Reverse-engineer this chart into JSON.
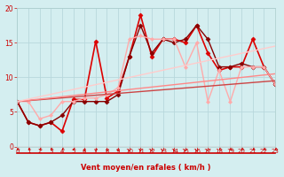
{
  "xlabel": "Vent moyen/en rafales ( km/h )",
  "xlim": [
    0,
    23
  ],
  "ylim": [
    0,
    20
  ],
  "xticks": [
    0,
    1,
    2,
    3,
    4,
    5,
    6,
    7,
    8,
    9,
    10,
    11,
    12,
    13,
    14,
    15,
    16,
    17,
    18,
    19,
    20,
    21,
    22,
    23
  ],
  "yticks": [
    0,
    5,
    10,
    15,
    20
  ],
  "bg_color": "#d4eef0",
  "grid_color": "#b8d8dc",
  "lines": [
    {
      "x": [
        0,
        1,
        2,
        3,
        4,
        5,
        6,
        7,
        8,
        9,
        10,
        11,
        12,
        13,
        14,
        15,
        16,
        17,
        18,
        19,
        20,
        21,
        22,
        23
      ],
      "y": [
        6.5,
        3.5,
        3.0,
        3.5,
        2.2,
        6.8,
        6.8,
        15.2,
        7.0,
        8.0,
        13.0,
        19.0,
        13.0,
        15.5,
        15.5,
        15.0,
        17.5,
        13.5,
        11.0,
        11.5,
        11.5,
        15.5,
        11.5,
        9.0
      ],
      "color": "#dd0000",
      "lw": 1.2,
      "marker": "D",
      "ms": 2.5
    },
    {
      "x": [
        0,
        1,
        2,
        3,
        4,
        5,
        6,
        7,
        8,
        9,
        10,
        11,
        12,
        13,
        14,
        15,
        16,
        17,
        18,
        19,
        20,
        21,
        22,
        23
      ],
      "y": [
        6.5,
        3.5,
        3.0,
        3.5,
        4.5,
        6.5,
        6.5,
        6.5,
        6.5,
        7.5,
        13.0,
        17.5,
        13.5,
        15.5,
        15.0,
        15.5,
        17.5,
        15.5,
        11.5,
        11.5,
        12.0,
        11.5,
        11.5,
        9.0
      ],
      "color": "#880000",
      "lw": 1.0,
      "marker": "D",
      "ms": 2.5
    },
    {
      "x": [
        0,
        1,
        2,
        3,
        4,
        5,
        6,
        7,
        8,
        9,
        10,
        11,
        12,
        13,
        14,
        15,
        16,
        17,
        18,
        19,
        20,
        21,
        22,
        23
      ],
      "y": [
        6.5,
        6.5,
        4.0,
        4.5,
        6.5,
        6.5,
        7.0,
        7.0,
        7.5,
        8.5,
        15.5,
        16.0,
        15.5,
        15.5,
        15.5,
        11.5,
        15.0,
        6.5,
        11.0,
        6.5,
        11.5,
        11.5,
        11.5,
        9.0
      ],
      "color": "#ffaaaa",
      "lw": 1.0,
      "marker": "D",
      "ms": 2.0
    },
    {
      "x": [
        0,
        23
      ],
      "y": [
        6.5,
        9.5
      ],
      "color": "#cc4444",
      "lw": 1.0,
      "marker": null,
      "ms": 0
    },
    {
      "x": [
        0,
        23
      ],
      "y": [
        6.5,
        10.5
      ],
      "color": "#ff8888",
      "lw": 1.0,
      "marker": null,
      "ms": 0
    },
    {
      "x": [
        0,
        23
      ],
      "y": [
        6.5,
        14.5
      ],
      "color": "#ffcccc",
      "lw": 1.0,
      "marker": null,
      "ms": 0
    }
  ],
  "arrow_angles": [
    -135,
    -135,
    -135,
    -135,
    -135,
    -135,
    -90,
    -90,
    -90,
    -90,
    -90,
    -90,
    -90,
    -90,
    -90,
    -90,
    -90,
    -90,
    -135,
    -135,
    -135,
    -135,
    -135,
    -135
  ],
  "arrow_color": "#cc0000"
}
